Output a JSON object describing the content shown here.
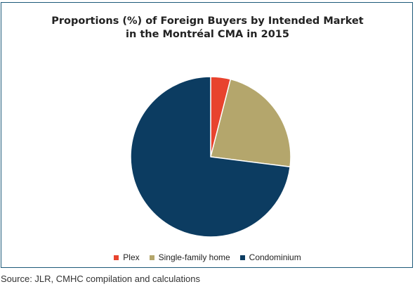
{
  "chart_data": {
    "type": "pie",
    "title_lines": [
      "Proportions (%) of Foreign Buyers by Intended Market",
      "in the Montréal CMA in 2015"
    ],
    "categories": [
      "Plex",
      "Single-family home",
      "Condominium"
    ],
    "values": [
      4,
      23,
      73
    ],
    "colors": [
      "#e8432e",
      "#b4a66c",
      "#0c3c61"
    ],
    "legend_position": "bottom"
  },
  "source": "Source: JLR, CMHC compilation and calculations"
}
